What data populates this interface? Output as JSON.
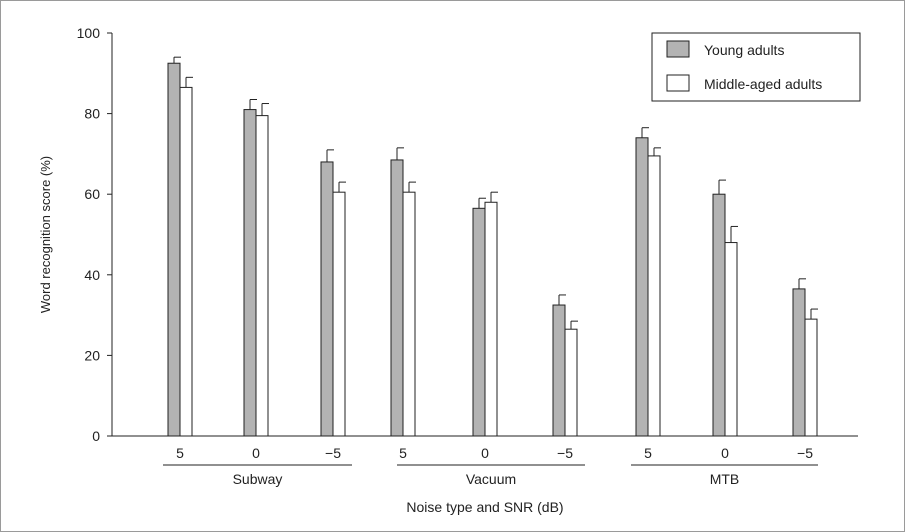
{
  "chart_data": {
    "type": "bar",
    "xlabel": "Noise type and SNR (dB)",
    "ylabel": "Word recognition score (%)",
    "ylim": [
      0,
      100
    ],
    "yticks": [
      0,
      20,
      40,
      60,
      80,
      100
    ],
    "grid": false,
    "legend_position": "top-right",
    "groups": [
      "Subway",
      "Vacuum",
      "MTB"
    ],
    "categories": [
      "5",
      "0",
      "−5",
      "5",
      "0",
      "−5",
      "5",
      "0",
      "−5"
    ],
    "series": [
      {
        "name": "Young adults",
        "color": "#b3b3b3",
        "values": [
          92.5,
          81,
          68,
          68.5,
          56.5,
          32.5,
          74,
          60,
          36.5
        ],
        "error": [
          1.5,
          2.5,
          3,
          3,
          2.5,
          2.5,
          2.5,
          3.5,
          2.5
        ]
      },
      {
        "name": "Middle-aged adults",
        "color": "#ffffff",
        "values": [
          86.5,
          79.5,
          60.5,
          60.5,
          58,
          26.5,
          69.5,
          48,
          29
        ],
        "error": [
          2.5,
          3,
          2.5,
          2.5,
          2.5,
          2,
          2,
          4,
          2.5
        ]
      }
    ]
  }
}
